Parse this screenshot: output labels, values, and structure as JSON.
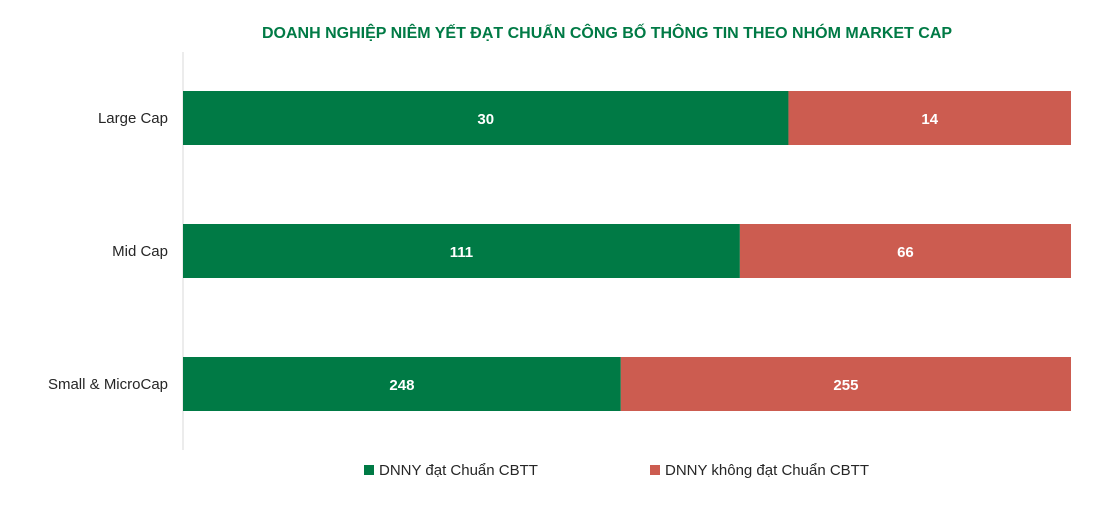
{
  "chart_data": {
    "type": "bar",
    "orientation": "horizontal",
    "stacking": "percent",
    "title": "DOANH NGHIỆP NIÊM YẾT ĐẠT CHUẨN CÔNG BỐ THÔNG TIN THEO NHÓM MARKET CAP",
    "categories": [
      "Large Cap",
      "Mid Cap",
      "Small & MicroCap"
    ],
    "series": [
      {
        "name": "DNNY đạt Chuẩn CBTT",
        "values": [
          30,
          111,
          248
        ],
        "color": "#007A45"
      },
      {
        "name": "DNNY không đạt Chuẩn CBTT",
        "values": [
          14,
          66,
          255
        ],
        "color": "#CC5C50"
      }
    ],
    "xlabel": "",
    "ylabel": "",
    "grid": false,
    "legend_position": "bottom",
    "data_labels": true
  },
  "colors": {
    "title": "#007A45",
    "axis": "#d9d9d9"
  }
}
